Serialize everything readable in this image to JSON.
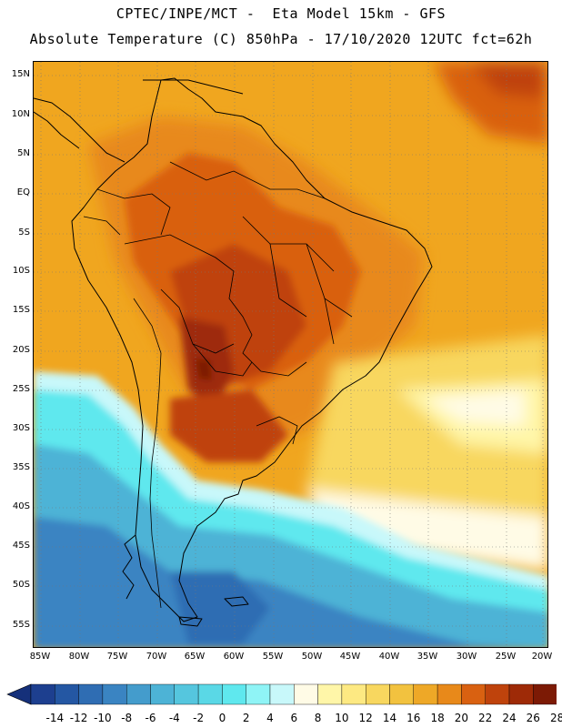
{
  "header": {
    "line1": "CPTEC/INPE/MCT -  Eta Model 15km - GFS",
    "line2": "Absolute Temperature (C) 850hPa - 17/10/2020 12UTC fct=62h"
  },
  "map": {
    "latitude_labels": [
      "15N",
      "10N",
      "5N",
      "EQ",
      "5S",
      "10S",
      "15S",
      "20S",
      "25S",
      "30S",
      "35S",
      "40S",
      "45S",
      "50S",
      "55S"
    ],
    "longitude_labels": [
      "85W",
      "80W",
      "75W",
      "70W",
      "65W",
      "60W",
      "55W",
      "50W",
      "45W",
      "40W",
      "35W",
      "30W",
      "25W",
      "20W"
    ]
  },
  "colorbar": {
    "labels": [
      "-14",
      "-12",
      "-10",
      "-8",
      "-6",
      "-4",
      "-2",
      "0",
      "2",
      "4",
      "6",
      "8",
      "10",
      "12",
      "14",
      "16",
      "18",
      "20",
      "22",
      "24",
      "26",
      "28"
    ],
    "colors": [
      "#1d3f8f",
      "#2457a3",
      "#2f6db3",
      "#3a84c2",
      "#449ccc",
      "#4db3d6",
      "#55c6de",
      "#5ad8e6",
      "#5fe8ee",
      "#8ff4f6",
      "#c8f8fa",
      "#fffbe6",
      "#fff6a8",
      "#fde982",
      "#f8d75f",
      "#f2c23f",
      "#eea827",
      "#e8891a",
      "#d96111",
      "#bf430c",
      "#9e2a07",
      "#7c1a05"
    ],
    "end_left": "#15307a",
    "end_right": "#6a0c2a"
  }
}
